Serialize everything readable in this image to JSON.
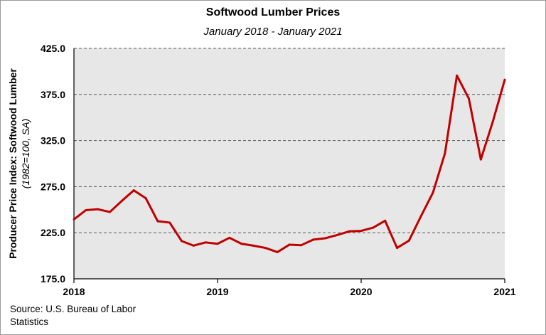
{
  "chart_data": {
    "type": "line",
    "title": "Softwood Lumber Prices",
    "subtitle": "January 2018 - January 2021",
    "ylabel": "Producer Price Index: Softwood Lumber",
    "ylabel_note": "(1982=100, SA)",
    "xlabel": "",
    "ylim": [
      175,
      425
    ],
    "yticks": [
      "425.0",
      "375.0",
      "325.0",
      "275.0",
      "225.0",
      "175.0"
    ],
    "xlim": [
      "2018-01",
      "2021-01"
    ],
    "xticks": [
      "2018",
      "2019",
      "2020",
      "2021"
    ],
    "grid": "horizontal dashed",
    "series": [
      {
        "color": "#c00000",
        "x": [
          "2018-01",
          "2018-02",
          "2018-03",
          "2018-04",
          "2018-05",
          "2018-06",
          "2018-07",
          "2018-08",
          "2018-09",
          "2018-10",
          "2018-11",
          "2018-12",
          "2019-01",
          "2019-02",
          "2019-03",
          "2019-04",
          "2019-05",
          "2019-06",
          "2019-07",
          "2019-08",
          "2019-09",
          "2019-10",
          "2019-11",
          "2019-12",
          "2020-01",
          "2020-02",
          "2020-03",
          "2020-04",
          "2020-05",
          "2020-06",
          "2020-07",
          "2020-08",
          "2020-09",
          "2020-10",
          "2020-11",
          "2020-12",
          "2021-01"
        ],
        "values": [
          239.5,
          249.5,
          250.5,
          247.5,
          259.5,
          271.0,
          262.5,
          237.5,
          236.0,
          216.0,
          211.0,
          214.5,
          213.0,
          219.5,
          213.0,
          211.0,
          208.5,
          204.0,
          212.0,
          211.5,
          217.5,
          219.0,
          222.5,
          226.5,
          227.0,
          230.5,
          238.0,
          208.5,
          216.5,
          243.0,
          268.5,
          311.0,
          395.5,
          370.5,
          304.5,
          345.5,
          391.0
        ]
      }
    ]
  },
  "source": "Source: U.S. Bureau of Labor Statistics",
  "colors": {
    "line": "#c00000",
    "plot_bg": "#e7e7e7",
    "grid": "#595959"
  }
}
